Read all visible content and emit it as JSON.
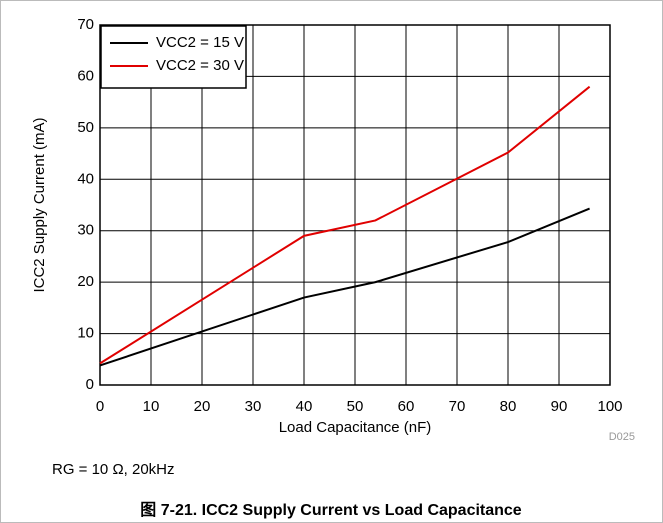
{
  "chart_data": {
    "type": "line",
    "ylabel": "ICC2 Supply Current (mA)",
    "xlabel": "Load Capacitance (nF)",
    "code": "D025",
    "annotation": "RG = 10 Ω, 20kHz",
    "caption": "图 7-21. ICC2 Supply Current vs Load Capacitance",
    "x": [
      0,
      40,
      54,
      80,
      96
    ],
    "series": [
      {
        "name": "VCC2 = 15 V",
        "color": "#000000",
        "values": [
          3.8,
          17,
          20,
          27.8,
          34.3
        ]
      },
      {
        "name": "VCC2 = 30 V",
        "color": "#e00000",
        "values": [
          4.2,
          29,
          32,
          45.2,
          58
        ]
      }
    ],
    "xlim": [
      0,
      100
    ],
    "xticks": [
      0,
      10,
      20,
      30,
      40,
      50,
      60,
      70,
      80,
      90,
      100
    ],
    "ylim": [
      0,
      70
    ],
    "yticks": [
      0,
      10,
      20,
      30,
      40,
      50,
      60,
      70
    ],
    "grid": true,
    "legend": "upper left"
  }
}
